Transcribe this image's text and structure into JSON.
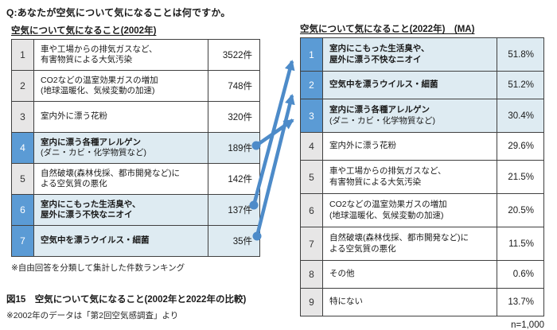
{
  "question": "Q:あなたが空気について気になることは何ですか。",
  "left_table": {
    "title": "空気について気になること(2002年)",
    "note": "※自由回答を分類して集計した件数ランキング",
    "rows": [
      {
        "no": "1",
        "lines": [
          "車や工場からの排気ガスなど、",
          "有害物質による大気汚染"
        ],
        "bold": [
          false,
          false
        ],
        "value": "3522件",
        "highlight": false
      },
      {
        "no": "2",
        "lines": [
          "CO2などの温室効果ガスの増加",
          "(地球温暖化、気候変動の加速)"
        ],
        "bold": [
          false,
          false
        ],
        "value": "748件",
        "highlight": false
      },
      {
        "no": "3",
        "lines": [
          "室内外に漂う花粉"
        ],
        "bold": [
          false
        ],
        "value": "320件",
        "highlight": false
      },
      {
        "no": "4",
        "lines": [
          "室内に漂う各種アレルゲン",
          "(ダニ・カビ・化学物質など)"
        ],
        "bold": [
          true,
          false
        ],
        "value": "189件",
        "highlight": true
      },
      {
        "no": "5",
        "lines": [
          "自然破壊(森林伐採、都市開発など)に",
          "よる空気質の悪化"
        ],
        "bold": [
          false,
          false
        ],
        "value": "142件",
        "highlight": false
      },
      {
        "no": "6",
        "lines": [
          "室内にこもった生活臭や、",
          "屋外に漂う不快なニオイ"
        ],
        "bold": [
          true,
          true
        ],
        "value": "137件",
        "highlight": true
      },
      {
        "no": "7",
        "lines": [
          "空気中を漂うウイルス・細菌"
        ],
        "bold": [
          true
        ],
        "value": "35件",
        "highlight": true
      }
    ]
  },
  "right_table": {
    "title": "空気について気になること(2022年)　(MA)",
    "footer": "n=1,000",
    "rows": [
      {
        "no": "1",
        "lines": [
          "室内にこもった生活臭や、",
          "屋外に漂う不快なニオイ"
        ],
        "bold": [
          true,
          true
        ],
        "value": "51.8%",
        "highlight": true
      },
      {
        "no": "2",
        "lines": [
          "空気中を漂うウイルス・細菌"
        ],
        "bold": [
          true
        ],
        "value": "51.2%",
        "highlight": true
      },
      {
        "no": "3",
        "lines": [
          "室内に漂う各種アレルゲン",
          "(ダニ・カビ・化学物質など)"
        ],
        "bold": [
          true,
          false
        ],
        "value": "30.4%",
        "highlight": true
      },
      {
        "no": "4",
        "lines": [
          "室内外に漂う花粉"
        ],
        "bold": [
          false
        ],
        "value": "29.6%",
        "highlight": false
      },
      {
        "no": "5",
        "lines": [
          "車や工場からの排気ガスなど、",
          "有害物質による大気汚染"
        ],
        "bold": [
          false,
          false
        ],
        "value": "21.5%",
        "highlight": false
      },
      {
        "no": "6",
        "lines": [
          "CO2などの温室効果ガスの増加",
          "(地球温暖化、気候変動の加速)"
        ],
        "bold": [
          false,
          false
        ],
        "value": "20.5%",
        "highlight": false
      },
      {
        "no": "7",
        "lines": [
          "自然破壊(森林伐採、都市開発など)に",
          "よる空気質の悪化"
        ],
        "bold": [
          false,
          false
        ],
        "value": "11.5%",
        "highlight": false
      },
      {
        "no": "8",
        "lines": [
          "その他"
        ],
        "bold": [
          false
        ],
        "value": "0.6%",
        "highlight": false
      },
      {
        "no": "9",
        "lines": [
          "特にない"
        ],
        "bold": [
          false
        ],
        "value": "13.7%",
        "highlight": false
      }
    ]
  },
  "arrows": [
    {
      "from_2002_rank": "4",
      "to_2022_rank": "3"
    },
    {
      "from_2002_rank": "6",
      "to_2022_rank": "1"
    },
    {
      "from_2002_rank": "7",
      "to_2022_rank": "2"
    }
  ],
  "caption": {
    "title": "図15　空気について気になること(2002年と2022年の比較)",
    "note": "※2002年のデータは「第2回空気感調査」より"
  },
  "colors": {
    "rank_highlight": "#5B9BD5",
    "highlight_row_bg": "#DEEBF2",
    "rank_bg": "#E7E6E6",
    "arrow": "#4D8BC9",
    "border": "#404040",
    "text": "#1A1A1A"
  },
  "chart_data": [
    {
      "type": "table",
      "title": "空気について気になること(2002年)",
      "unit": "件",
      "note": "※自由回答を分類して集計した件数ランキング",
      "categories": [
        "車や工場からの排気ガスなど、有害物質による大気汚染",
        "CO2などの温室効果ガスの増加(地球温暖化、気候変動の加速)",
        "室内外に漂う花粉",
        "室内に漂う各種アレルゲン(ダニ・カビ・化学物質など)",
        "自然破壊(森林伐採、都市開発など)による空気質の悪化",
        "室内にこもった生活臭や、屋外に漂う不快なニオイ",
        "空気中を漂うウイルス・細菌"
      ],
      "values": [
        3522,
        748,
        320,
        189,
        142,
        137,
        35
      ]
    },
    {
      "type": "table",
      "title": "空気について気になること(2022年)(MA)",
      "unit": "%",
      "sample": "n=1,000",
      "categories": [
        "室内にこもった生活臭や、屋外に漂う不快なニオイ",
        "空気中を漂うウイルス・細菌",
        "室内に漂う各種アレルゲン(ダニ・カビ・化学物質など)",
        "室内外に漂う花粉",
        "車や工場からの排気ガスなど、有害物質による大気汚染",
        "CO2などの温室効果ガスの増加(地球温暖化、気候変動の加速)",
        "自然破壊(森林伐採、都市開発など)による空気質の悪化",
        "その他",
        "特にない"
      ],
      "values": [
        51.8,
        51.2,
        30.4,
        29.6,
        21.5,
        20.5,
        11.5,
        0.6,
        13.7
      ]
    }
  ]
}
